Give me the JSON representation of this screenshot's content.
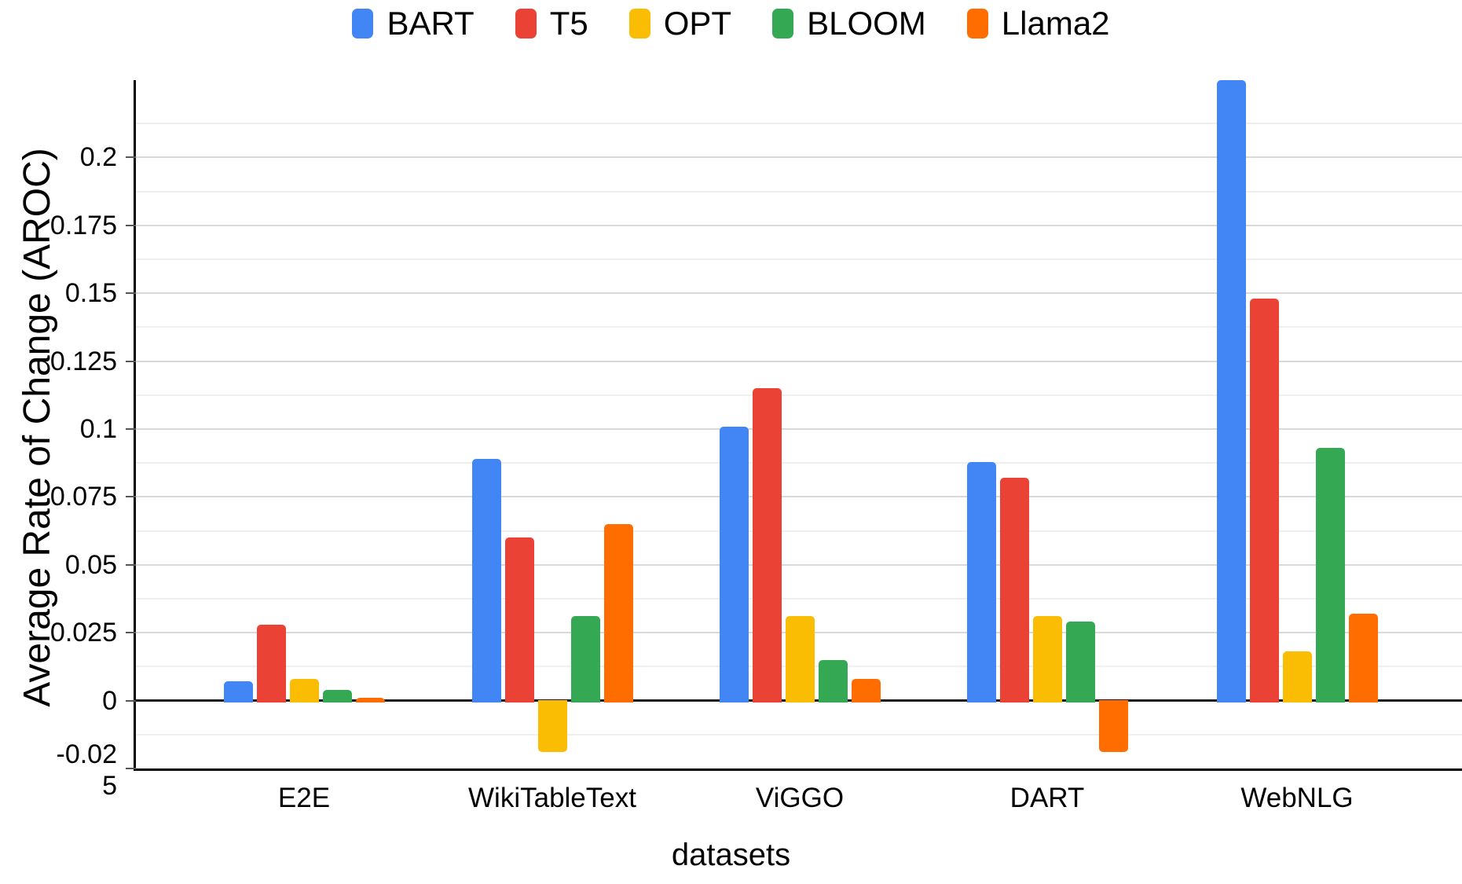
{
  "chart_data": {
    "type": "bar",
    "title": "",
    "xlabel": "datasets",
    "ylabel": "Average Rate of Change (AROC)",
    "categories": [
      "E2E",
      "WikiTableText",
      "ViGGO",
      "DART",
      "WebNLG"
    ],
    "series": [
      {
        "name": "BART",
        "color": "#4285F4",
        "values": [
          0.007,
          0.089,
          0.101,
          0.088,
          0.229
        ]
      },
      {
        "name": "T5",
        "color": "#EA4335",
        "values": [
          0.028,
          0.06,
          0.115,
          0.082,
          0.148
        ]
      },
      {
        "name": "OPT",
        "color": "#FBBC04",
        "values": [
          0.008,
          -0.019,
          0.031,
          0.031,
          0.018
        ]
      },
      {
        "name": "BLOOM",
        "color": "#34A853",
        "values": [
          0.004,
          0.031,
          0.015,
          0.029,
          0.093
        ]
      },
      {
        "name": "Llama2",
        "color": "#FF6D01",
        "values": [
          0.001,
          0.065,
          0.008,
          -0.019,
          0.032
        ]
      }
    ],
    "y_ticks": [
      {
        "v": 0.2,
        "label": "0.2"
      },
      {
        "v": 0.175,
        "label": "0.175"
      },
      {
        "v": 0.15,
        "label": "0.15"
      },
      {
        "v": 0.125,
        "label": "0.125"
      },
      {
        "v": 0.1,
        "label": "0.1"
      },
      {
        "v": 0.075,
        "label": "0.075"
      },
      {
        "v": 0.05,
        "label": "0.05"
      },
      {
        "v": 0.025,
        "label": "0.025"
      },
      {
        "v": 0,
        "label": "0"
      },
      {
        "v": -0.025,
        "label": "-0.02",
        "label2": "5"
      }
    ],
    "ylim": [
      -0.025,
      0.2285
    ],
    "grid_step": 0.0125,
    "grid_on": true,
    "legend_position": "top-center",
    "zero_baseline": true
  },
  "colors": {
    "axis": "#000000",
    "zero_line": "#1a1a1a",
    "major_grid": "#d9d9d9",
    "minor_grid": "#efefef",
    "text": "#000000"
  }
}
